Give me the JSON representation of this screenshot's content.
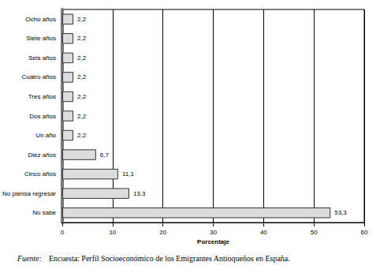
{
  "chart_data": {
    "type": "bar",
    "orientation": "horizontal",
    "categories": [
      "No sabe",
      "No piensa regresar",
      "Cinco años",
      "Diez años",
      "Un año",
      "Dos años",
      "Tres años",
      "Cuatro años",
      "Seis años",
      "Siete años",
      "Ocho años"
    ],
    "values": [
      53.3,
      13.3,
      11.1,
      6.7,
      2.2,
      2.2,
      2.2,
      2.2,
      2.2,
      2.2,
      2.2
    ],
    "value_labels": [
      "53,3",
      "13,3",
      "11,1",
      "6,7",
      "2,2",
      "2,2",
      "2,2",
      "2,2",
      "2,2",
      "2,2",
      "2,2"
    ],
    "data_labels": true,
    "color": "#dcdcdc",
    "xlabel": "Porcentaje",
    "xlim": [
      0,
      60
    ],
    "xticks": [
      0,
      10,
      20,
      30,
      40,
      50,
      60
    ],
    "grid": true,
    "annotations": [
      "Fuente:",
      "Encuesta: Perfil Socioeconómico de los Emigrantes Antioqueños en España."
    ]
  }
}
